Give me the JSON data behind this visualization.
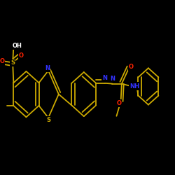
{
  "background_color": "#000000",
  "bond_color": "#ccaa00",
  "heteroatom_colors": {
    "N": "#3333ff",
    "O": "#ff2200",
    "S": "#ccaa00",
    "H": "#ffffff"
  },
  "figsize": [
    2.5,
    2.5
  ],
  "dpi": 100,
  "lw": 1.3,
  "fontsize": 6.5
}
